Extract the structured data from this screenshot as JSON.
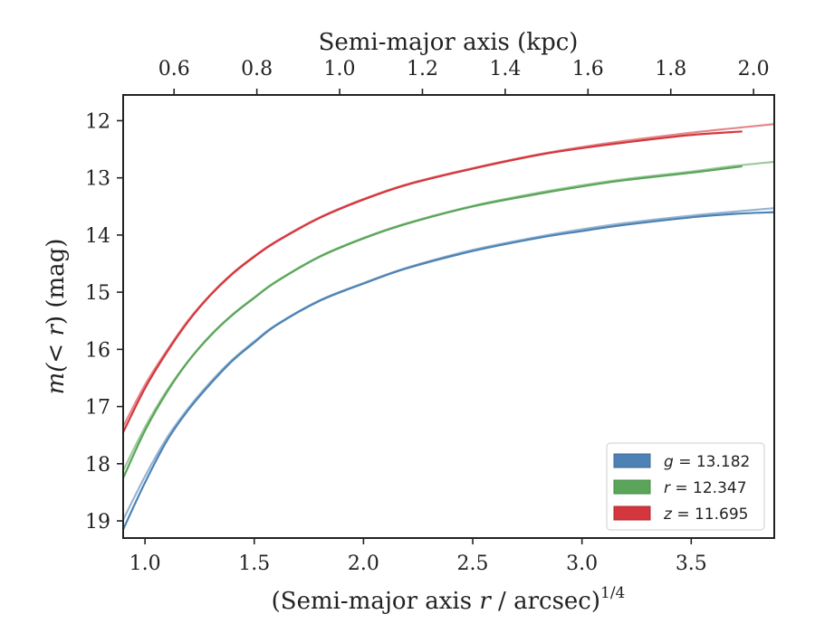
{
  "chart_data": {
    "type": "line",
    "top_axis": {
      "label": "Semi-major axis (kpc)",
      "ticks": [
        0.6,
        0.8,
        1.0,
        1.2,
        1.4,
        1.6,
        1.8,
        2.0
      ],
      "tick_labels": [
        "0.6",
        "0.8",
        "1.0",
        "1.2",
        "1.4",
        "1.6",
        "1.8",
        "2.0"
      ],
      "xlim": [
        0.477,
        2.05
      ]
    },
    "x_axis": {
      "label_main": "(Semi-major axis ",
      "label_var": "r",
      "label_rest": " / arcsec)",
      "label_exp": "1/4",
      "ticks": [
        1.0,
        1.5,
        2.0,
        2.5,
        3.0,
        3.5
      ],
      "tick_labels": [
        "1.0",
        "1.5",
        "2.0",
        "2.5",
        "3.0",
        "3.5"
      ],
      "xlim": [
        0.9,
        3.88
      ]
    },
    "y_axis": {
      "label_pre": "m(",
      "label_op": "< r",
      "label_post": ") (mag)",
      "ticks": [
        12,
        13,
        14,
        15,
        16,
        17,
        18,
        19
      ],
      "tick_labels": [
        "12",
        "13",
        "14",
        "15",
        "16",
        "17",
        "18",
        "19"
      ],
      "ylim": [
        19.3,
        11.55
      ],
      "inverted": true
    },
    "legend": {
      "placement": "lower-right",
      "entries": [
        {
          "var": "g",
          "text": " = 13.182",
          "color": "#4e82b4"
        },
        {
          "var": "r",
          "text": " = 12.347",
          "color": "#5aa55a"
        },
        {
          "var": "z",
          "text": " = 11.695",
          "color": "#d3373d"
        }
      ]
    },
    "series": [
      {
        "band": "g",
        "color": "#4e82b4",
        "data": {
          "x": [
            0.9,
            1.0,
            1.1,
            1.2,
            1.3,
            1.4,
            1.5,
            1.6,
            1.8,
            2.0,
            2.2,
            2.5,
            2.8,
            3.0,
            3.2,
            3.5,
            3.7,
            3.88
          ],
          "y": [
            19.15,
            18.33,
            17.6,
            17.05,
            16.6,
            16.2,
            15.88,
            15.58,
            15.15,
            14.85,
            14.58,
            14.28,
            14.05,
            13.93,
            13.82,
            13.69,
            13.63,
            13.6
          ]
        },
        "model": {
          "x": [
            0.9,
            1.0,
            1.1,
            1.2,
            1.3,
            1.4,
            1.5,
            1.6,
            1.8,
            2.0,
            2.2,
            2.5,
            2.8,
            3.0,
            3.2,
            3.5,
            3.7,
            3.88
          ],
          "y": [
            18.98,
            18.22,
            17.55,
            17.02,
            16.57,
            16.18,
            15.86,
            15.57,
            15.14,
            14.84,
            14.57,
            14.26,
            14.03,
            13.9,
            13.79,
            13.66,
            13.59,
            13.53
          ]
        }
      },
      {
        "band": "r",
        "color": "#5aa55a",
        "data": {
          "x": [
            0.9,
            1.0,
            1.1,
            1.2,
            1.3,
            1.4,
            1.5,
            1.6,
            1.8,
            2.0,
            2.2,
            2.5,
            2.8,
            3.0,
            3.2,
            3.5,
            3.73
          ],
          "y": [
            18.25,
            17.42,
            16.75,
            16.2,
            15.76,
            15.4,
            15.1,
            14.82,
            14.38,
            14.06,
            13.8,
            13.5,
            13.28,
            13.15,
            13.04,
            12.91,
            12.8
          ]
        },
        "model": {
          "x": [
            0.9,
            1.0,
            1.1,
            1.2,
            1.3,
            1.4,
            1.5,
            1.6,
            1.8,
            2.0,
            2.2,
            2.5,
            2.8,
            3.0,
            3.2,
            3.5,
            3.7,
            3.88
          ],
          "y": [
            18.12,
            17.36,
            16.72,
            16.19,
            15.75,
            15.39,
            15.09,
            14.81,
            14.37,
            14.05,
            13.79,
            13.49,
            13.26,
            13.13,
            13.02,
            12.89,
            12.79,
            12.72
          ]
        }
      },
      {
        "band": "z",
        "color": "#d3373d",
        "data": {
          "x": [
            0.9,
            1.0,
            1.1,
            1.2,
            1.3,
            1.4,
            1.5,
            1.6,
            1.8,
            2.0,
            2.2,
            2.5,
            2.8,
            3.0,
            3.2,
            3.5,
            3.73
          ],
          "y": [
            17.45,
            16.68,
            16.05,
            15.5,
            15.05,
            14.68,
            14.38,
            14.12,
            13.7,
            13.38,
            13.12,
            12.84,
            12.6,
            12.48,
            12.38,
            12.25,
            12.19
          ]
        },
        "model": {
          "x": [
            0.9,
            1.0,
            1.1,
            1.2,
            1.3,
            1.4,
            1.5,
            1.6,
            1.8,
            2.0,
            2.2,
            2.5,
            2.8,
            3.0,
            3.2,
            3.5,
            3.7,
            3.88
          ],
          "y": [
            17.35,
            16.62,
            16.02,
            15.48,
            15.04,
            14.67,
            14.37,
            14.11,
            13.69,
            13.37,
            13.11,
            12.83,
            12.59,
            12.46,
            12.35,
            12.21,
            12.13,
            12.06
          ]
        }
      }
    ]
  }
}
